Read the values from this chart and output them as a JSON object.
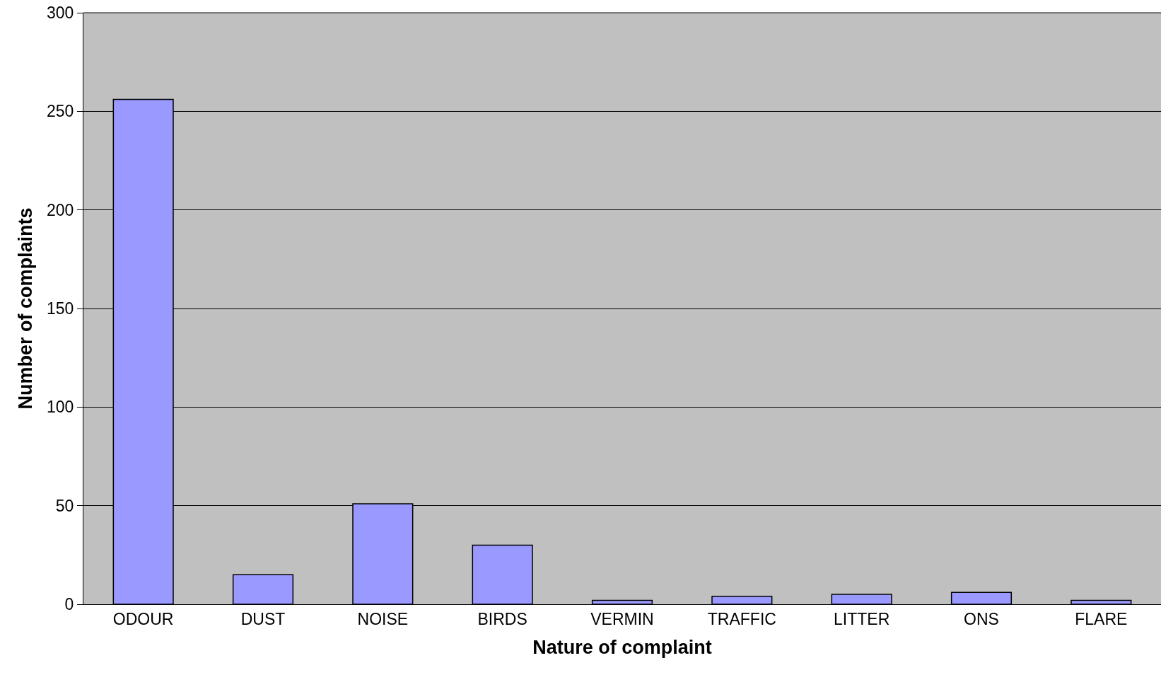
{
  "chart_data": {
    "type": "bar",
    "xlabel": "Nature of complaint",
    "ylabel": "Number of complaints",
    "categories": [
      "ODOUR",
      "DUST",
      "NOISE",
      "BIRDS",
      "VERMIN",
      "TRAFFIC",
      "LITTER",
      "ONS",
      "FLARE"
    ],
    "values": [
      256,
      15,
      51,
      30,
      2,
      4,
      5,
      6,
      2
    ],
    "color": "#9999ff",
    "ylim": [
      0,
      300
    ],
    "yticks": [
      0,
      50,
      100,
      150,
      200,
      250,
      300
    ],
    "grid": "y"
  }
}
